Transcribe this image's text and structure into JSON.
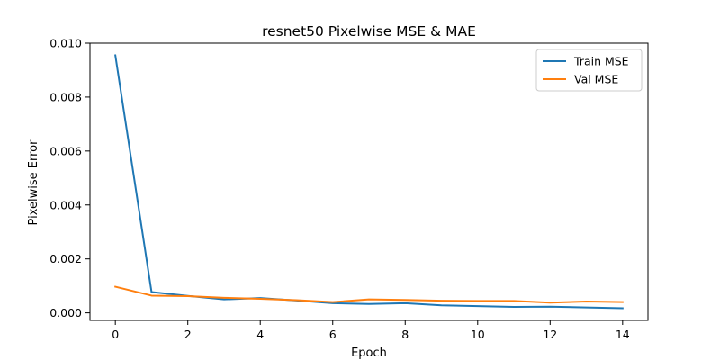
{
  "chart_data": {
    "type": "line",
    "title": "resnet50 Pixelwise MSE & MAE",
    "xlabel": "Epoch",
    "ylabel": "Pixelwise Error",
    "xlim": [
      -0.7,
      14.7
    ],
    "ylim": [
      -0.00028,
      0.01
    ],
    "xticks": [
      0,
      2,
      4,
      6,
      8,
      10,
      12,
      14
    ],
    "xtick_labels": [
      "0",
      "2",
      "4",
      "6",
      "8",
      "10",
      "12",
      "14"
    ],
    "yticks": [
      0.0,
      0.002,
      0.004,
      0.006,
      0.008,
      0.01
    ],
    "ytick_labels": [
      "0.000",
      "0.002",
      "0.004",
      "0.006",
      "0.008",
      "0.010"
    ],
    "grid": false,
    "legend_position": "top-right",
    "x": [
      0,
      1,
      2,
      3,
      4,
      5,
      6,
      7,
      8,
      9,
      10,
      11,
      12,
      13,
      14
    ],
    "series": [
      {
        "name": "Train MSE",
        "color": "#1f77b4",
        "values": [
          0.00955,
          0.00077,
          0.00063,
          0.0005,
          0.00055,
          0.00046,
          0.00036,
          0.00033,
          0.00036,
          0.00028,
          0.00025,
          0.00022,
          0.00023,
          0.0002,
          0.00017
        ]
      },
      {
        "name": "Val MSE",
        "color": "#ff7f0e",
        "values": [
          0.00097,
          0.00064,
          0.00062,
          0.00056,
          0.00052,
          0.00047,
          0.0004,
          0.0005,
          0.00048,
          0.00045,
          0.00044,
          0.00044,
          0.00038,
          0.00042,
          0.0004
        ]
      }
    ]
  }
}
